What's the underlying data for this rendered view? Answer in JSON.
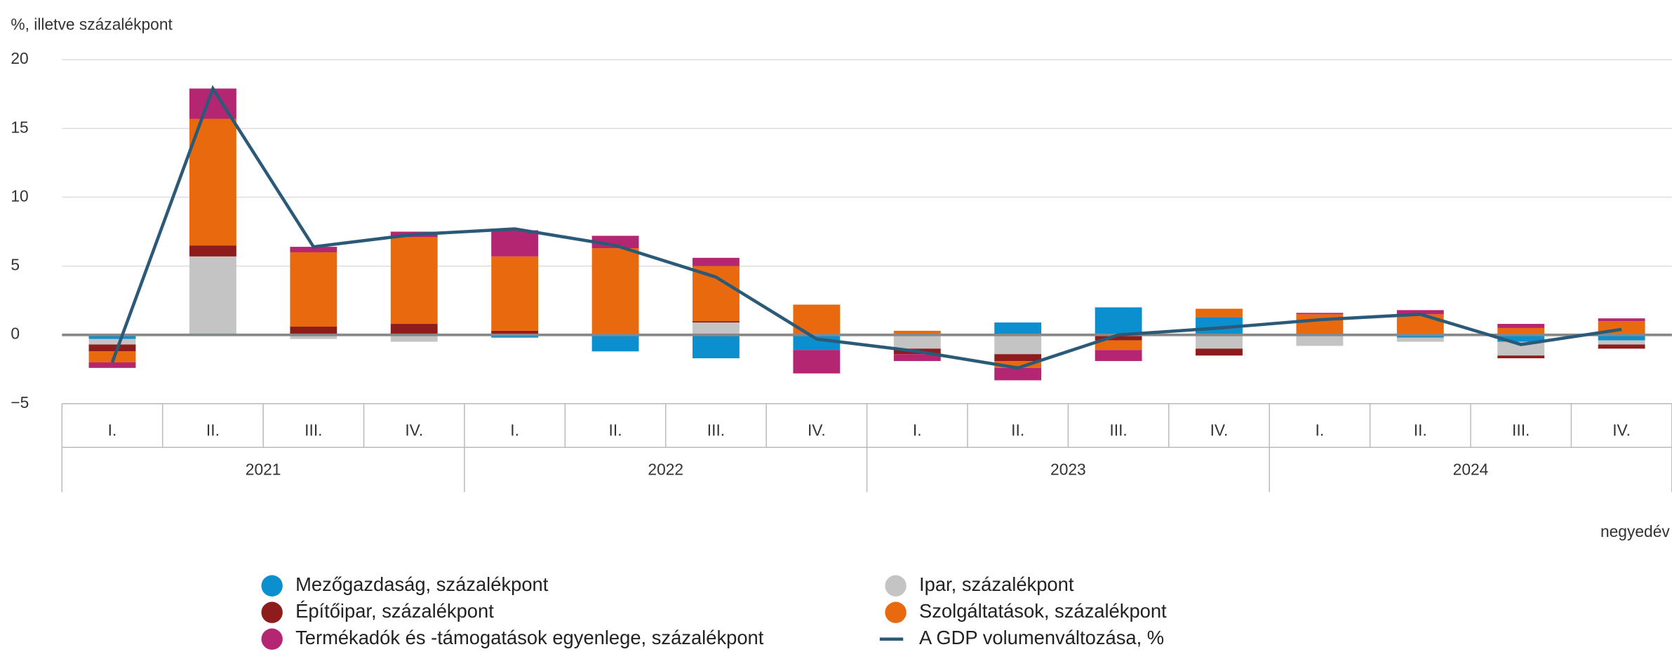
{
  "chart_data": {
    "type": "bar",
    "y_label": "%, illetve százalékpont",
    "x_label": "negyedév",
    "categories": [
      "I.",
      "II.",
      "III.",
      "IV.",
      "I.",
      "II.",
      "III.",
      "IV.",
      "I.",
      "II.",
      "III.",
      "IV.",
      "I.",
      "II.",
      "III.",
      "IV."
    ],
    "groups": [
      "2021",
      "2022",
      "2023",
      "2024"
    ],
    "stacked": true,
    "series": [
      {
        "name": "Mezőgazdaság, százalékpont",
        "color": "#0b8fcf",
        "values": [
          -0.3,
          0.1,
          0,
          0,
          -0.2,
          -1.2,
          -1.7,
          -1.1,
          0,
          0.9,
          2.0,
          1.3,
          0,
          -0.2,
          -0.5,
          -0.4
        ]
      },
      {
        "name": "Ipar, százalékpont",
        "color": "#c4c4c4",
        "values": [
          -0.4,
          5.6,
          -0.3,
          -0.5,
          0,
          0,
          0.9,
          0,
          -1.0,
          -1.4,
          0,
          -1.0,
          -0.8,
          -0.3,
          -1.0,
          -0.3
        ]
      },
      {
        "name": "Építőipar, százalékpont",
        "color": "#8e1c1c",
        "values": [
          -0.5,
          0.8,
          0.6,
          0.8,
          0.3,
          0,
          0.1,
          0,
          -0.4,
          -0.5,
          -0.4,
          -0.5,
          0,
          0,
          -0.2,
          -0.3
        ]
      },
      {
        "name": "Szolgáltatások, százalékpont",
        "color": "#e96a0e",
        "values": [
          -0.8,
          9.2,
          5.4,
          6.3,
          5.4,
          6.3,
          4.0,
          2.2,
          0.3,
          -0.5,
          -0.7,
          0.6,
          1.5,
          1.5,
          0.5,
          1.0
        ]
      },
      {
        "name": "Termékadók és -támogatások egyenlege, százalékpont",
        "color": "#b52672",
        "values": [
          -0.4,
          2.2,
          0.4,
          0.4,
          1.9,
          0.9,
          0.6,
          -1.7,
          -0.5,
          -0.9,
          -0.8,
          0,
          0.1,
          0.3,
          0.3,
          0.2
        ]
      },
      {
        "name": "A GDP volumenváltozása, %",
        "color": "#2b5a78",
        "type": "line",
        "values": [
          -2.0,
          17.9,
          6.4,
          7.3,
          7.7,
          6.5,
          4.2,
          -0.3,
          -1.2,
          -2.4,
          0.0,
          0.5,
          1.1,
          1.5,
          -0.7,
          0.4
        ]
      }
    ],
    "ylim": [
      -5,
      20
    ],
    "yticks": [
      {
        "value": -5,
        "label": "−5"
      },
      0,
      5,
      10,
      15,
      20
    ],
    "grid": true
  }
}
